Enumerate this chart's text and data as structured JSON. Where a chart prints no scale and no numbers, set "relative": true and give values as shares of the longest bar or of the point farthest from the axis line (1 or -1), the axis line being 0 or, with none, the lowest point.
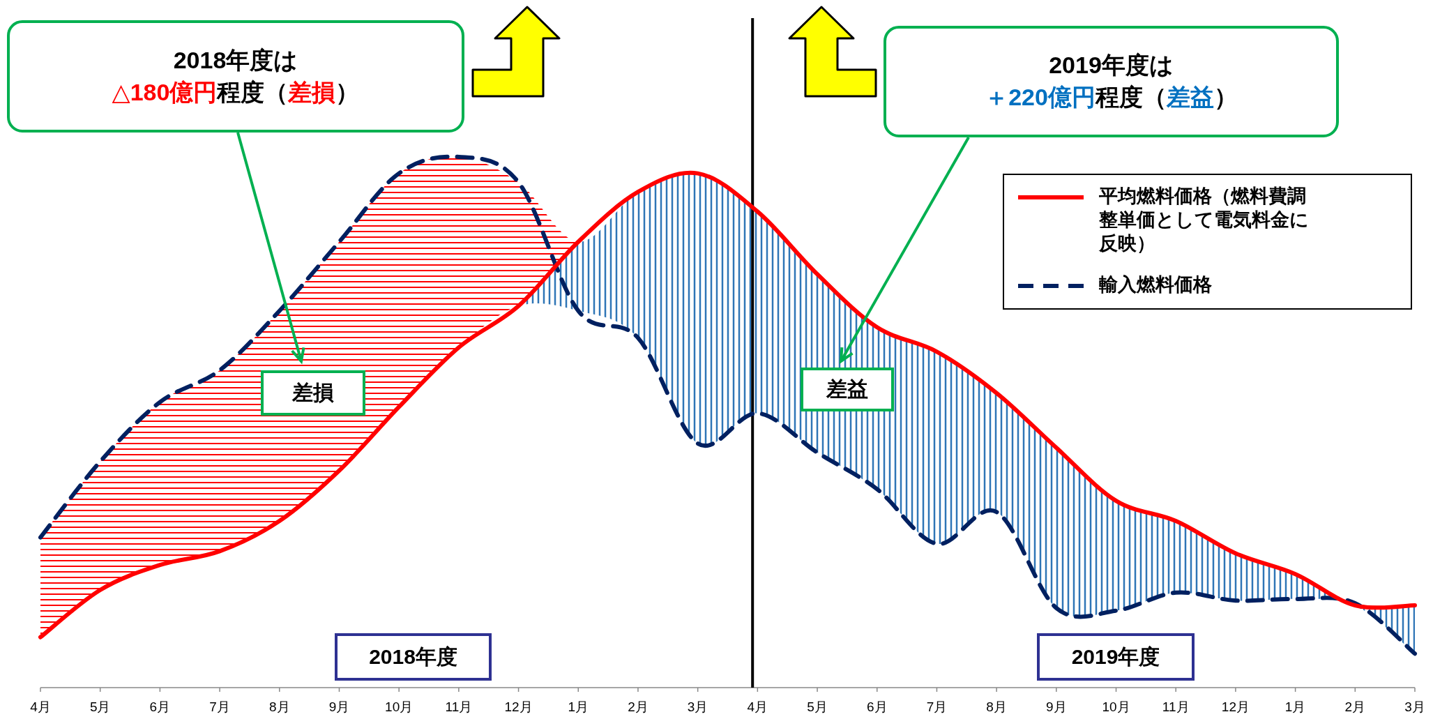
{
  "chart_data": {
    "type": "line",
    "relative": true,
    "legend": "top right",
    "categories": [
      "4月",
      "5月",
      "6月",
      "7月",
      "8月",
      "9月",
      "10月",
      "11月",
      "12月",
      "1月",
      "2月",
      "3月",
      "4月",
      "5月",
      "6月",
      "7月",
      "8月",
      "9月",
      "10月",
      "11月",
      "12月",
      "1月",
      "2月",
      "3月"
    ],
    "series": [
      {
        "name": "平均燃料価格（燃料費調整単価として電気料金に反映）",
        "color": "#ff0000",
        "line_style": "solid",
        "values": [
          0.095,
          0.184,
          0.231,
          0.257,
          0.314,
          0.409,
          0.529,
          0.641,
          0.719,
          0.84,
          0.934,
          0.969,
          0.897,
          0.779,
          0.679,
          0.633,
          0.555,
          0.452,
          0.352,
          0.314,
          0.253,
          0.214,
          0.155,
          0.155
        ],
        "lower": [
          0.095,
          0.184,
          0.231,
          0.257,
          0.314,
          0.409,
          0.529,
          0.641,
          0.719,
          0.71,
          0.659,
          0.46,
          0.517,
          0.443,
          0.374,
          0.271,
          0.331,
          0.15,
          0.145,
          0.179,
          0.164,
          0.167,
          0.155,
          0.064
        ],
        "upper": [
          0.283,
          0.426,
          0.538,
          0.598,
          0.71,
          0.84,
          0.969,
          1.0,
          0.952,
          0.84,
          0.934,
          0.969,
          0.897,
          0.779,
          0.679,
          0.633,
          0.555,
          0.452,
          0.352,
          0.314,
          0.253,
          0.214,
          0.159,
          0.155
        ]
      },
      {
        "name": "輸入燃料価格",
        "color": "#002060",
        "line_style": "dashed",
        "values": [
          0.283,
          0.426,
          0.538,
          0.598,
          0.71,
          0.84,
          0.969,
          1.0,
          0.952,
          0.71,
          0.659,
          0.46,
          0.517,
          0.443,
          0.374,
          0.271,
          0.331,
          0.15,
          0.145,
          0.179,
          0.164,
          0.167,
          0.159,
          0.064
        ]
      }
    ],
    "annotations": [
      "2018年度は",
      "△180億円",
      "程度（",
      "差損",
      "）",
      "2019年度は",
      "＋220億円",
      "程度（",
      "差益",
      "）",
      "差損",
      "差益",
      "2018年度",
      "2019年度"
    ]
  }
}
